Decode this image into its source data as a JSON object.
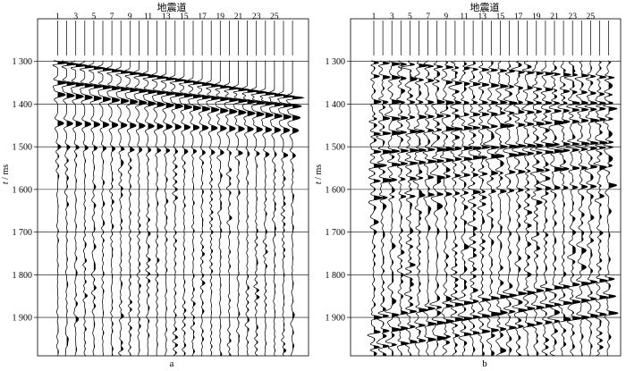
{
  "chart_data": [
    {
      "type": "wiggle",
      "panel_label": "a",
      "xlabel": "地震道",
      "ylabel_italic": "t",
      "ylabel_unit": " / ms",
      "xticks": [
        1,
        3,
        5,
        7,
        9,
        11,
        13,
        15,
        17,
        19,
        21,
        23,
        25
      ],
      "trace_count": 27,
      "yticks": [
        {
          "value": 1300,
          "label": "1 300"
        },
        {
          "value": 1400,
          "label": "1 400"
        },
        {
          "value": 1500,
          "label": "1 500"
        },
        {
          "value": 1600,
          "label": "1 600"
        },
        {
          "value": 1700,
          "label": "1 700"
        },
        {
          "value": 1800,
          "label": "1 800"
        },
        {
          "value": 1900,
          "label": "1 900"
        }
      ],
      "ylim": [
        1200,
        1990
      ],
      "grid": "horizontal",
      "events": [
        {
          "t_first": 1303,
          "t_last": 1385,
          "amp": 1.35,
          "width": 5
        },
        {
          "t_first": 1350,
          "t_last": 1405,
          "amp": 1.1,
          "width": 7
        },
        {
          "t_first": 1378,
          "t_last": 1432,
          "amp": 0.95,
          "width": 9
        },
        {
          "t_first": 1445,
          "t_last": 1462,
          "amp": 0.75,
          "width": 10
        },
        {
          "t_first": 1500,
          "t_last": 1520,
          "amp": 0.4,
          "width": 9
        }
      ],
      "noise_start": 1505,
      "noise_amp": 0.22
    },
    {
      "type": "wiggle",
      "panel_label": "b",
      "xlabel": "地震道",
      "ylabel_italic": "t",
      "ylabel_unit": " / ms",
      "xticks": [
        1,
        3,
        5,
        7,
        9,
        11,
        13,
        15,
        17,
        19,
        21,
        23,
        25
      ],
      "trace_count": 27,
      "yticks": [
        {
          "value": 1300,
          "label": "1 300"
        },
        {
          "value": 1400,
          "label": "1 400"
        },
        {
          "value": 1500,
          "label": "1 500"
        },
        {
          "value": 1600,
          "label": "1 600"
        },
        {
          "value": 1700,
          "label": "1 700"
        },
        {
          "value": 1800,
          "label": "1 800"
        },
        {
          "value": 1900,
          "label": "1 900"
        }
      ],
      "ylim": [
        1200,
        1990
      ],
      "grid": "horizontal",
      "events": [
        {
          "t_first": 1303,
          "t_last": 1338,
          "amp": 0.8,
          "width": 5
        },
        {
          "t_first": 1335,
          "t_last": 1378,
          "amp": 0.7,
          "width": 6
        },
        {
          "t_first": 1395,
          "t_last": 1398,
          "amp": 0.7,
          "width": 6
        },
        {
          "t_first": 1435,
          "t_last": 1410,
          "amp": 0.8,
          "width": 6
        },
        {
          "t_first": 1470,
          "t_last": 1435,
          "amp": 0.85,
          "width": 6
        },
        {
          "t_first": 1512,
          "t_last": 1490,
          "amp": 1.0,
          "width": 6
        },
        {
          "t_first": 1545,
          "t_last": 1500,
          "amp": 0.9,
          "width": 6
        },
        {
          "t_first": 1580,
          "t_last": 1545,
          "amp": 0.7,
          "width": 6
        },
        {
          "t_first": 1620,
          "t_last": 1590,
          "amp": 0.55,
          "width": 6
        },
        {
          "t_first": 1900,
          "t_last": 1810,
          "amp": 0.9,
          "width": 6
        },
        {
          "t_first": 1935,
          "t_last": 1850,
          "amp": 0.9,
          "width": 6
        },
        {
          "t_first": 1970,
          "t_last": 1890,
          "amp": 0.85,
          "width": 6
        }
      ],
      "noise_start": 1300,
      "noise_amp": 0.5
    }
  ]
}
